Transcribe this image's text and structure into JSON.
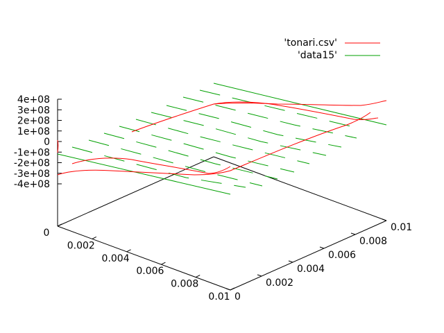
{
  "chart_data": {
    "type": "line",
    "subtype": "3d-surface-plot",
    "title": "",
    "legend": {
      "placement": "top-right",
      "entries": [
        {
          "label": "'tonari.csv'",
          "color": "#ff0000"
        },
        {
          "label": "'data15'",
          "color": "#00a000"
        }
      ]
    },
    "x_axis": {
      "ticks": [
        "0",
        "0.002",
        "0.004",
        "0.006",
        "0.008",
        "0.01"
      ],
      "range": [
        0,
        0.01
      ]
    },
    "y_axis": {
      "ticks": [
        "0",
        "0.002",
        "0.004",
        "0.006",
        "0.008",
        "0.01"
      ],
      "range": [
        0,
        0.01
      ]
    },
    "z_axis": {
      "ticks": [
        "4e+08",
        "3e+08",
        "2e+08",
        "1e+08",
        "0",
        "-1e+08",
        "-2e+08",
        "-3e+08",
        "-4e+08"
      ],
      "range": [
        -400000000,
        400000000
      ]
    },
    "grid": false
  }
}
